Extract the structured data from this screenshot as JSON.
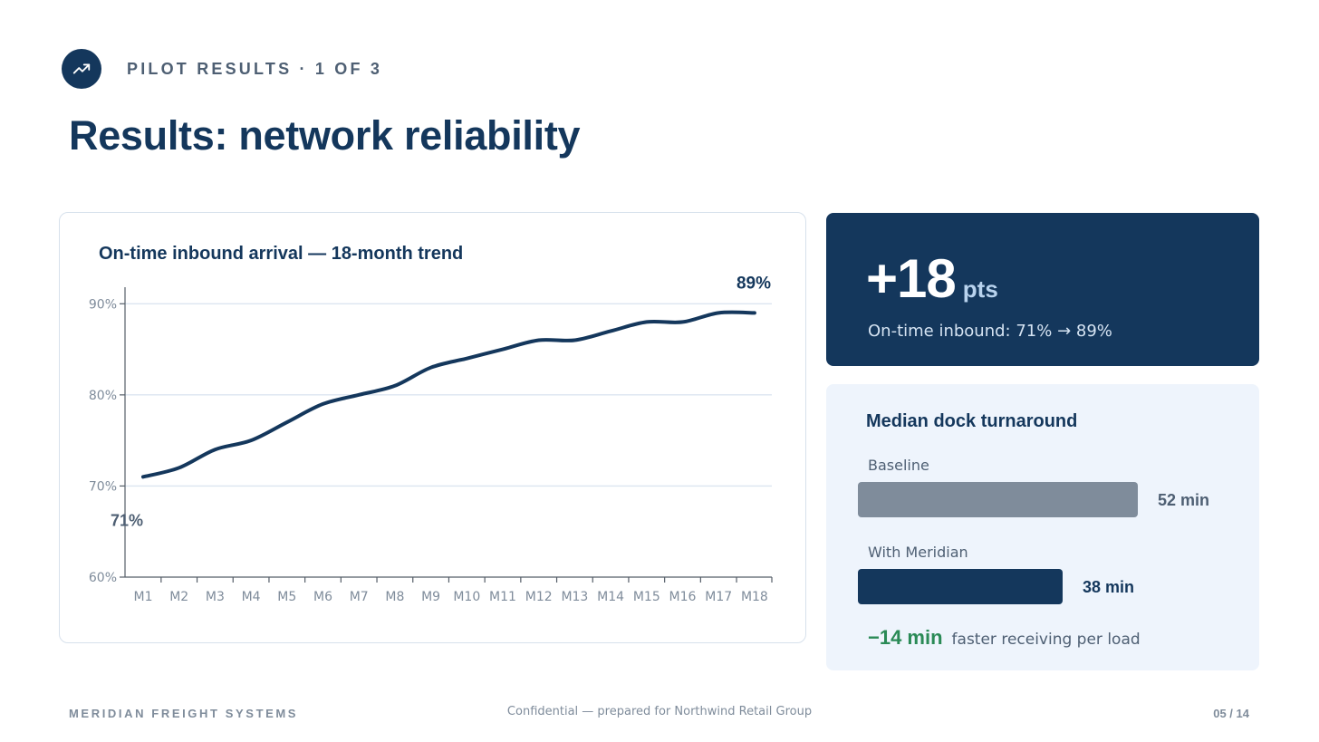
{
  "header": {
    "eyebrow": "PILOT RESULTS · 1 OF 3",
    "eyebrow_icon": "trending-up-icon",
    "title": "Results: network reliability"
  },
  "chart_data": {
    "type": "line",
    "title": "On-time inbound arrival — 18-month trend",
    "xlabel": "",
    "ylabel": "",
    "categories": [
      "M1",
      "M2",
      "M3",
      "M4",
      "M5",
      "M6",
      "M7",
      "M8",
      "M9",
      "M10",
      "M11",
      "M12",
      "M13",
      "M14",
      "M15",
      "M16",
      "M17",
      "M18"
    ],
    "series": [
      {
        "values": [
          71,
          72,
          74,
          75,
          77,
          79,
          80,
          81,
          83,
          84,
          85,
          86,
          86,
          87,
          88,
          88,
          89,
          89
        ]
      }
    ],
    "ylim": [
      60,
      95
    ],
    "yticks": [
      60,
      70,
      80,
      90
    ],
    "ytick_labels": [
      "60%",
      "70%",
      "80%",
      "90%"
    ],
    "start_label": "71%",
    "end_label": "89%",
    "grid": true,
    "line_color": "#14375c"
  },
  "kpi": {
    "value": "+18",
    "unit": "pts",
    "subtitle": "On-time inbound: 71% → 89%"
  },
  "dock": {
    "title": "Median dock turnaround",
    "bars": [
      {
        "label": "Baseline",
        "value": 52,
        "value_label": "52 min",
        "color": "#7f8c9b"
      },
      {
        "label": "With Meridian",
        "value": 38,
        "value_label": "38 min",
        "color": "#14375c"
      }
    ],
    "delta_value": "−14 min",
    "delta_text": "faster receiving per load",
    "delta_color": "#2a8a56"
  },
  "footer": {
    "company": "MERIDIAN FREIGHT SYSTEMS",
    "confidential": "Confidential — prepared for Northwind Retail Group",
    "page": "05 / 14"
  }
}
